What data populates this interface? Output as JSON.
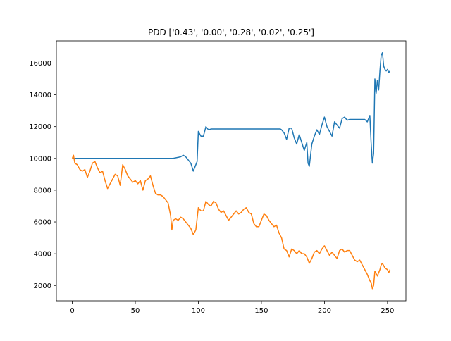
{
  "chart_data": {
    "type": "line",
    "title": "PDD ['0.43', '0.00', '0.28', '0.02', '0.25']",
    "xlim": [
      -12.6,
      264.6
    ],
    "xticks": [
      0,
      50,
      100,
      150,
      200,
      250
    ],
    "ylim": [
      1037,
      17393
    ],
    "yticks": [
      2000,
      4000,
      6000,
      8000,
      10000,
      12000,
      14000,
      16000
    ],
    "series": [
      {
        "color": "#1f77b4",
        "x": [
          0,
          80,
          86,
          88,
          90,
          92,
          94,
          96,
          98,
          99,
          100,
          102,
          104,
          106,
          108,
          110,
          165,
          166,
          168,
          170,
          172,
          174,
          176,
          178,
          180,
          182,
          184,
          186,
          187,
          188,
          190,
          192,
          194,
          196,
          198,
          200,
          202,
          204,
          206,
          208,
          210,
          212,
          214,
          216,
          218,
          220,
          232,
          234,
          236,
          237,
          238,
          239,
          240,
          241,
          242,
          243,
          244,
          245,
          246,
          247,
          248,
          249,
          250,
          251,
          252
        ],
        "values": [
          10000,
          10000,
          10100,
          10200,
          10100,
          9900,
          9700,
          9200,
          9600,
          9800,
          11700,
          11400,
          11400,
          12000,
          11800,
          11850,
          11850,
          11800,
          11600,
          11200,
          11900,
          11900,
          11300,
          10900,
          11500,
          11000,
          10500,
          11000,
          9700,
          9500,
          10900,
          11400,
          11800,
          11500,
          12100,
          12600,
          12000,
          11700,
          11400,
          12300,
          12100,
          11900,
          12500,
          12600,
          12400,
          12450,
          12450,
          12300,
          12700,
          11000,
          9700,
          10300,
          15000,
          14100,
          14900,
          14300,
          15500,
          16500,
          16650,
          15800,
          15600,
          15500,
          15600,
          15400,
          15500
        ]
      },
      {
        "color": "#ff7f0e",
        "x": [
          0,
          1,
          2,
          4,
          6,
          8,
          10,
          12,
          14,
          16,
          18,
          20,
          22,
          24,
          26,
          28,
          30,
          32,
          34,
          36,
          38,
          40,
          42,
          44,
          46,
          48,
          50,
          52,
          54,
          56,
          58,
          60,
          62,
          64,
          66,
          68,
          70,
          72,
          74,
          76,
          78,
          79,
          80,
          82,
          84,
          86,
          88,
          90,
          92,
          94,
          96,
          98,
          100,
          102,
          104,
          106,
          108,
          110,
          112,
          114,
          116,
          118,
          120,
          122,
          124,
          126,
          128,
          130,
          132,
          134,
          136,
          138,
          140,
          142,
          144,
          146,
          148,
          150,
          152,
          154,
          156,
          158,
          160,
          162,
          164,
          166,
          168,
          170,
          172,
          174,
          176,
          178,
          180,
          182,
          184,
          186,
          188,
          190,
          192,
          194,
          196,
          198,
          200,
          202,
          204,
          206,
          208,
          210,
          212,
          214,
          216,
          218,
          220,
          222,
          224,
          226,
          228,
          230,
          232,
          234,
          236,
          237,
          238,
          239,
          240,
          242,
          244,
          245,
          246,
          248,
          250,
          251,
          252
        ],
        "values": [
          10000,
          10200,
          9700,
          9600,
          9300,
          9200,
          9300,
          8800,
          9200,
          9700,
          9800,
          9400,
          9100,
          9200,
          8600,
          8100,
          8400,
          8700,
          9000,
          8900,
          8300,
          9600,
          9300,
          8900,
          8700,
          8500,
          8600,
          8400,
          8600,
          8000,
          8600,
          8700,
          8900,
          8300,
          7800,
          7700,
          7700,
          7600,
          7400,
          7200,
          6400,
          5500,
          6100,
          6200,
          6100,
          6300,
          6200,
          6000,
          5800,
          5600,
          5200,
          5500,
          6900,
          6700,
          6700,
          7300,
          7100,
          7000,
          7300,
          7200,
          6800,
          6600,
          6700,
          6400,
          6100,
          6300,
          6500,
          6700,
          6500,
          6600,
          6800,
          6900,
          6600,
          6500,
          5900,
          5700,
          5700,
          6100,
          6500,
          6400,
          6100,
          5900,
          5700,
          5800,
          5300,
          5000,
          4300,
          4200,
          3800,
          4300,
          4200,
          4000,
          4200,
          4000,
          4000,
          3800,
          3400,
          3700,
          4100,
          4200,
          4000,
          4300,
          4500,
          4200,
          3900,
          4100,
          3900,
          3700,
          4200,
          4300,
          4100,
          4200,
          4200,
          3900,
          3600,
          3500,
          3600,
          3300,
          3000,
          2700,
          2300,
          2200,
          1800,
          2000,
          2900,
          2600,
          3000,
          3300,
          3400,
          3100,
          3000,
          2800,
          3000
        ]
      }
    ]
  }
}
